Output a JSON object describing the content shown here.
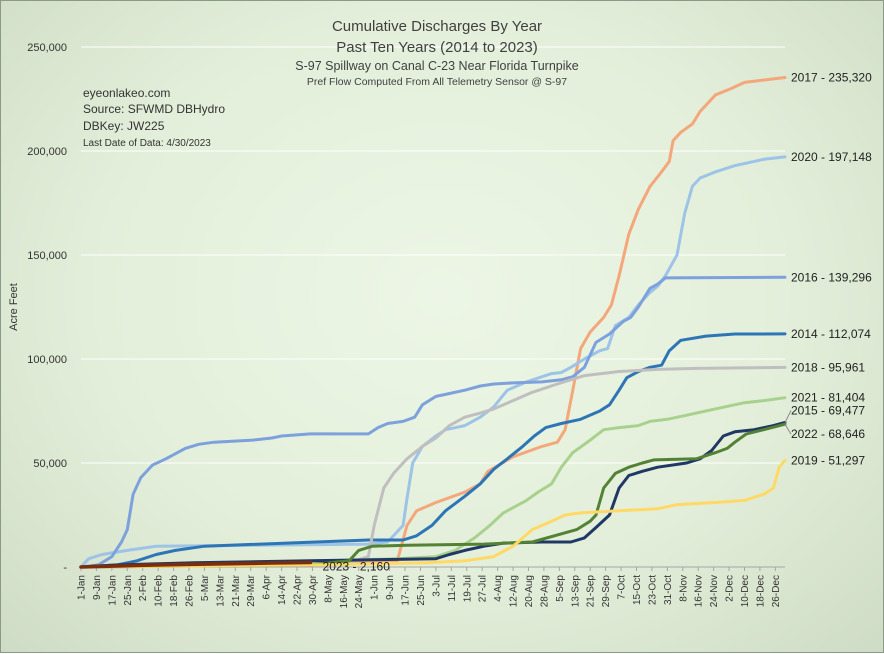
{
  "chart_data": {
    "type": "line",
    "title": "Cumulative Discharges By Year",
    "title_line2": "Past Ten Years (2014 to 2023)",
    "subtitle": "S-97 Spillway on Canal C-23 Near Florida Turnpike",
    "subtitle2": "Pref Flow Computed From All Telemetry Sensor @ S-97",
    "info": [
      "eyeonlakeo.com",
      "Source: SFWMD DBHydro",
      "DBKey: JW225"
    ],
    "info_small": "Last Date of Data: 4/30/2023",
    "ylabel": "Acre Feet",
    "xlabel": "",
    "ylim": [
      0,
      250000
    ],
    "yticks": [
      "-",
      "50,000",
      "100,000",
      "150,000",
      "200,000",
      "250,000"
    ],
    "ytick_values": [
      0,
      50000,
      100000,
      150000,
      200000,
      250000
    ],
    "xlim": [
      1,
      366
    ],
    "xtick_labels": [
      "1-Jan",
      "9-Jan",
      "17-Jan",
      "25-Jan",
      "2-Feb",
      "10-Feb",
      "18-Feb",
      "26-Feb",
      "5-Mar",
      "13-Mar",
      "21-Mar",
      "29-Mar",
      "6-Apr",
      "14-Apr",
      "22-Apr",
      "30-Apr",
      "8-May",
      "16-May",
      "24-May",
      "1-Jun",
      "9-Jun",
      "17-Jun",
      "25-Jun",
      "3-Jul",
      "11-Jul",
      "19-Jul",
      "27-Jul",
      "4-Aug",
      "12-Aug",
      "20-Aug",
      "28-Aug",
      "5-Sep",
      "13-Sep",
      "21-Sep",
      "29-Sep",
      "7-Oct",
      "15-Oct",
      "23-Oct",
      "31-Oct",
      "8-Nov",
      "16-Nov",
      "24-Nov",
      "2-Dec",
      "10-Dec",
      "18-Dec",
      "26-Dec"
    ],
    "grid": true,
    "series": [
      {
        "name": "2017",
        "end_label": "2017 - 235,320",
        "color": "#f4a77a",
        "points": [
          [
            1,
            0
          ],
          [
            100,
            1500
          ],
          [
            150,
            2000
          ],
          [
            165,
            3000
          ],
          [
            170,
            20000
          ],
          [
            175,
            27000
          ],
          [
            185,
            31000
          ],
          [
            200,
            36000
          ],
          [
            208,
            40000
          ],
          [
            212,
            46000
          ],
          [
            225,
            53000
          ],
          [
            240,
            58000
          ],
          [
            248,
            60000
          ],
          [
            252,
            66000
          ],
          [
            256,
            85000
          ],
          [
            260,
            105000
          ],
          [
            265,
            113000
          ],
          [
            272,
            120000
          ],
          [
            276,
            126000
          ],
          [
            280,
            140000
          ],
          [
            285,
            160000
          ],
          [
            290,
            172000
          ],
          [
            296,
            183000
          ],
          [
            302,
            190000
          ],
          [
            306,
            195000
          ],
          [
            308,
            205000
          ],
          [
            312,
            209000
          ],
          [
            318,
            213000
          ],
          [
            322,
            219000
          ],
          [
            330,
            227000
          ],
          [
            338,
            230000
          ],
          [
            345,
            233000
          ],
          [
            366,
            235320
          ]
        ]
      },
      {
        "name": "2020",
        "end_label": "2020 - 197,148",
        "color": "#9dc3e6",
        "points": [
          [
            1,
            0
          ],
          [
            5,
            4000
          ],
          [
            12,
            6000
          ],
          [
            25,
            8000
          ],
          [
            40,
            10000
          ],
          [
            150,
            11000
          ],
          [
            160,
            12000
          ],
          [
            168,
            20000
          ],
          [
            170,
            33000
          ],
          [
            173,
            50000
          ],
          [
            178,
            58000
          ],
          [
            185,
            63000
          ],
          [
            190,
            66000
          ],
          [
            200,
            68000
          ],
          [
            208,
            72000
          ],
          [
            215,
            77000
          ],
          [
            222,
            85000
          ],
          [
            232,
            89000
          ],
          [
            245,
            93000
          ],
          [
            250,
            93500
          ],
          [
            255,
            96000
          ],
          [
            262,
            100000
          ],
          [
            270,
            104000
          ],
          [
            274,
            105000
          ],
          [
            278,
            116000
          ],
          [
            285,
            120000
          ],
          [
            290,
            126000
          ],
          [
            296,
            132000
          ],
          [
            300,
            135000
          ],
          [
            304,
            140000
          ],
          [
            310,
            150000
          ],
          [
            314,
            170000
          ],
          [
            318,
            183000
          ],
          [
            322,
            187000
          ],
          [
            330,
            190000
          ],
          [
            340,
            193000
          ],
          [
            355,
            196000
          ],
          [
            366,
            197148
          ]
        ]
      },
      {
        "name": "2016",
        "end_label": "2016 - 139,296",
        "color": "#7da1dd",
        "points": [
          [
            1,
            0
          ],
          [
            10,
            1000
          ],
          [
            17,
            5000
          ],
          [
            22,
            12000
          ],
          [
            25,
            18000
          ],
          [
            28,
            35000
          ],
          [
            32,
            43000
          ],
          [
            38,
            49000
          ],
          [
            45,
            52000
          ],
          [
            55,
            57000
          ],
          [
            62,
            59000
          ],
          [
            70,
            60000
          ],
          [
            90,
            61000
          ],
          [
            100,
            62000
          ],
          [
            105,
            63000
          ],
          [
            120,
            64000
          ],
          [
            150,
            64000
          ],
          [
            155,
            67000
          ],
          [
            160,
            69000
          ],
          [
            168,
            70000
          ],
          [
            174,
            72000
          ],
          [
            178,
            78000
          ],
          [
            185,
            82000
          ],
          [
            190,
            83000
          ],
          [
            200,
            85000
          ],
          [
            208,
            87000
          ],
          [
            215,
            88000
          ],
          [
            225,
            88500
          ],
          [
            240,
            89000
          ],
          [
            250,
            90000
          ],
          [
            256,
            91500
          ],
          [
            262,
            96000
          ],
          [
            268,
            108000
          ],
          [
            275,
            112000
          ],
          [
            282,
            118000
          ],
          [
            286,
            120000
          ],
          [
            290,
            125000
          ],
          [
            296,
            134000
          ],
          [
            300,
            136000
          ],
          [
            304,
            139000
          ],
          [
            366,
            139296
          ]
        ]
      },
      {
        "name": "2014",
        "end_label": "2014 - 112,074",
        "color": "#2e75b6",
        "points": [
          [
            1,
            0
          ],
          [
            20,
            1000
          ],
          [
            30,
            3000
          ],
          [
            40,
            6000
          ],
          [
            50,
            8000
          ],
          [
            65,
            10000
          ],
          [
            150,
            13000
          ],
          [
            168,
            13000
          ],
          [
            175,
            15000
          ],
          [
            183,
            20000
          ],
          [
            190,
            27000
          ],
          [
            200,
            34000
          ],
          [
            208,
            40000
          ],
          [
            215,
            47000
          ],
          [
            222,
            52000
          ],
          [
            230,
            58000
          ],
          [
            236,
            63000
          ],
          [
            242,
            67000
          ],
          [
            250,
            69000
          ],
          [
            260,
            71000
          ],
          [
            270,
            75000
          ],
          [
            275,
            78000
          ],
          [
            280,
            85000
          ],
          [
            284,
            91000
          ],
          [
            290,
            94000
          ],
          [
            296,
            96000
          ],
          [
            302,
            97000
          ],
          [
            306,
            104000
          ],
          [
            312,
            109000
          ],
          [
            325,
            111000
          ],
          [
            340,
            112000
          ],
          [
            366,
            112074
          ]
        ]
      },
      {
        "name": "2018",
        "end_label": "2018 - 95,961",
        "color": "#bfbfbf",
        "points": [
          [
            1,
            0
          ],
          [
            60,
            1000
          ],
          [
            140,
            2000
          ],
          [
            150,
            5000
          ],
          [
            153,
            20000
          ],
          [
            158,
            38000
          ],
          [
            163,
            45000
          ],
          [
            170,
            52000
          ],
          [
            178,
            58000
          ],
          [
            185,
            62000
          ],
          [
            192,
            68000
          ],
          [
            200,
            72000
          ],
          [
            208,
            74000
          ],
          [
            215,
            76000
          ],
          [
            225,
            80000
          ],
          [
            235,
            84000
          ],
          [
            248,
            88000
          ],
          [
            262,
            92000
          ],
          [
            280,
            94000
          ],
          [
            300,
            95000
          ],
          [
            320,
            95500
          ],
          [
            366,
            95961
          ]
        ]
      },
      {
        "name": "2021",
        "end_label": "2021 - 81,404",
        "color": "#a9d18e",
        "points": [
          [
            1,
            0
          ],
          [
            60,
            2000
          ],
          [
            130,
            3000
          ],
          [
            165,
            4000
          ],
          [
            185,
            5000
          ],
          [
            195,
            8000
          ],
          [
            205,
            14000
          ],
          [
            213,
            20000
          ],
          [
            220,
            26000
          ],
          [
            232,
            32000
          ],
          [
            238,
            36000
          ],
          [
            245,
            40000
          ],
          [
            250,
            48000
          ],
          [
            256,
            55000
          ],
          [
            265,
            61000
          ],
          [
            272,
            66000
          ],
          [
            280,
            67000
          ],
          [
            290,
            68000
          ],
          [
            296,
            70000
          ],
          [
            305,
            71000
          ],
          [
            315,
            73000
          ],
          [
            325,
            75000
          ],
          [
            335,
            77000
          ],
          [
            345,
            79000
          ],
          [
            355,
            80000
          ],
          [
            366,
            81404
          ]
        ]
      },
      {
        "name": "2015",
        "end_label": "2015 - 69,477",
        "color": "#203864",
        "points": [
          [
            1,
            0
          ],
          [
            20,
            1000
          ],
          [
            60,
            2000
          ],
          [
            120,
            3000
          ],
          [
            185,
            4000
          ],
          [
            192,
            6000
          ],
          [
            200,
            8000
          ],
          [
            210,
            10000
          ],
          [
            220,
            11500
          ],
          [
            240,
            12000
          ],
          [
            255,
            12000
          ],
          [
            262,
            14000
          ],
          [
            268,
            19000
          ],
          [
            275,
            25000
          ],
          [
            280,
            38000
          ],
          [
            285,
            44000
          ],
          [
            292,
            46000
          ],
          [
            300,
            48000
          ],
          [
            315,
            50000
          ],
          [
            322,
            52000
          ],
          [
            328,
            56000
          ],
          [
            334,
            63000
          ],
          [
            340,
            65000
          ],
          [
            350,
            66000
          ],
          [
            360,
            68000
          ],
          [
            366,
            69477
          ]
        ]
      },
      {
        "name": "2022",
        "end_label": "2022 - 68,646",
        "color": "#548235",
        "points": [
          [
            1,
            0
          ],
          [
            120,
            1000
          ],
          [
            140,
            3000
          ],
          [
            145,
            8000
          ],
          [
            152,
            10000
          ],
          [
            170,
            10500
          ],
          [
            210,
            11000
          ],
          [
            235,
            12000
          ],
          [
            258,
            18000
          ],
          [
            265,
            22000
          ],
          [
            268,
            25000
          ],
          [
            272,
            38000
          ],
          [
            278,
            45000
          ],
          [
            285,
            48000
          ],
          [
            292,
            50000
          ],
          [
            298,
            51500
          ],
          [
            320,
            52000
          ],
          [
            330,
            55000
          ],
          [
            336,
            57000
          ],
          [
            340,
            60000
          ],
          [
            346,
            64000
          ],
          [
            355,
            66000
          ],
          [
            366,
            68646
          ]
        ]
      },
      {
        "name": "2019",
        "end_label": "2019 - 51,297",
        "color": "#ffd966",
        "points": [
          [
            1,
            0
          ],
          [
            120,
            1000
          ],
          [
            180,
            2000
          ],
          [
            200,
            3000
          ],
          [
            215,
            5000
          ],
          [
            225,
            10000
          ],
          [
            235,
            18000
          ],
          [
            245,
            22000
          ],
          [
            252,
            25000
          ],
          [
            260,
            26000
          ],
          [
            280,
            27000
          ],
          [
            300,
            28000
          ],
          [
            310,
            30000
          ],
          [
            330,
            31000
          ],
          [
            345,
            32000
          ],
          [
            355,
            35000
          ],
          [
            360,
            38000
          ],
          [
            363,
            48000
          ],
          [
            366,
            51297
          ]
        ]
      },
      {
        "name": "2023",
        "end_label": "2023 - 2,160",
        "color": "#7b2d0e",
        "points": [
          [
            1,
            0
          ],
          [
            20,
            500
          ],
          [
            40,
            1000
          ],
          [
            70,
            1500
          ],
          [
            100,
            1900
          ],
          [
            120,
            2160
          ]
        ]
      }
    ]
  }
}
